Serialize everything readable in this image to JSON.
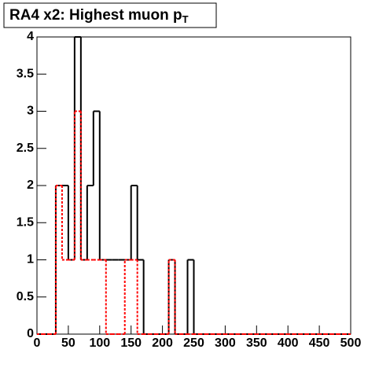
{
  "chart_data": {
    "type": "histogram",
    "title": "RA4 x2: Highest muon p",
    "title_subscript": "T",
    "bins": [
      0,
      10,
      20,
      30,
      40,
      50,
      60,
      70,
      80,
      90,
      100,
      110,
      120,
      130,
      140,
      150,
      160,
      170,
      180,
      190,
      200,
      210,
      220,
      230,
      240,
      250,
      260,
      270,
      280,
      290,
      300,
      310,
      320,
      330,
      340,
      350,
      360,
      370,
      380,
      390,
      400,
      410,
      420,
      430,
      440,
      450,
      460,
      470,
      480,
      490,
      500
    ],
    "series": [
      {
        "color": "#000000",
        "dashed": false,
        "values": [
          0,
          0,
          0,
          2,
          2,
          1,
          4,
          1,
          2,
          3,
          1,
          1,
          1,
          1,
          1,
          2,
          1,
          0,
          0,
          0,
          0,
          1,
          0,
          0,
          1,
          0,
          0,
          0,
          0,
          0,
          0,
          0,
          0,
          0,
          0,
          0,
          0,
          0,
          0,
          0,
          0,
          0,
          0,
          0,
          0,
          0,
          0,
          0,
          0,
          0
        ]
      },
      {
        "color": "#ff0000",
        "dashed": true,
        "values": [
          0,
          0,
          0,
          2,
          1,
          1,
          3,
          1,
          1,
          1,
          1,
          0,
          0,
          0,
          1,
          1,
          0,
          0,
          0,
          0,
          0,
          1,
          0,
          0,
          0,
          0,
          0,
          0,
          0,
          0,
          0,
          0,
          0,
          0,
          0,
          0,
          0,
          0,
          0,
          0,
          0,
          0,
          0,
          0,
          0,
          0,
          0,
          0,
          0,
          0
        ]
      }
    ],
    "xlim": [
      0,
      500
    ],
    "xticks": [
      0,
      50,
      100,
      150,
      200,
      250,
      300,
      350,
      400,
      450,
      500
    ],
    "ylim": [
      0,
      4
    ],
    "yticks": [
      0,
      0.5,
      1,
      1.5,
      2,
      2.5,
      3,
      3.5,
      4
    ]
  }
}
